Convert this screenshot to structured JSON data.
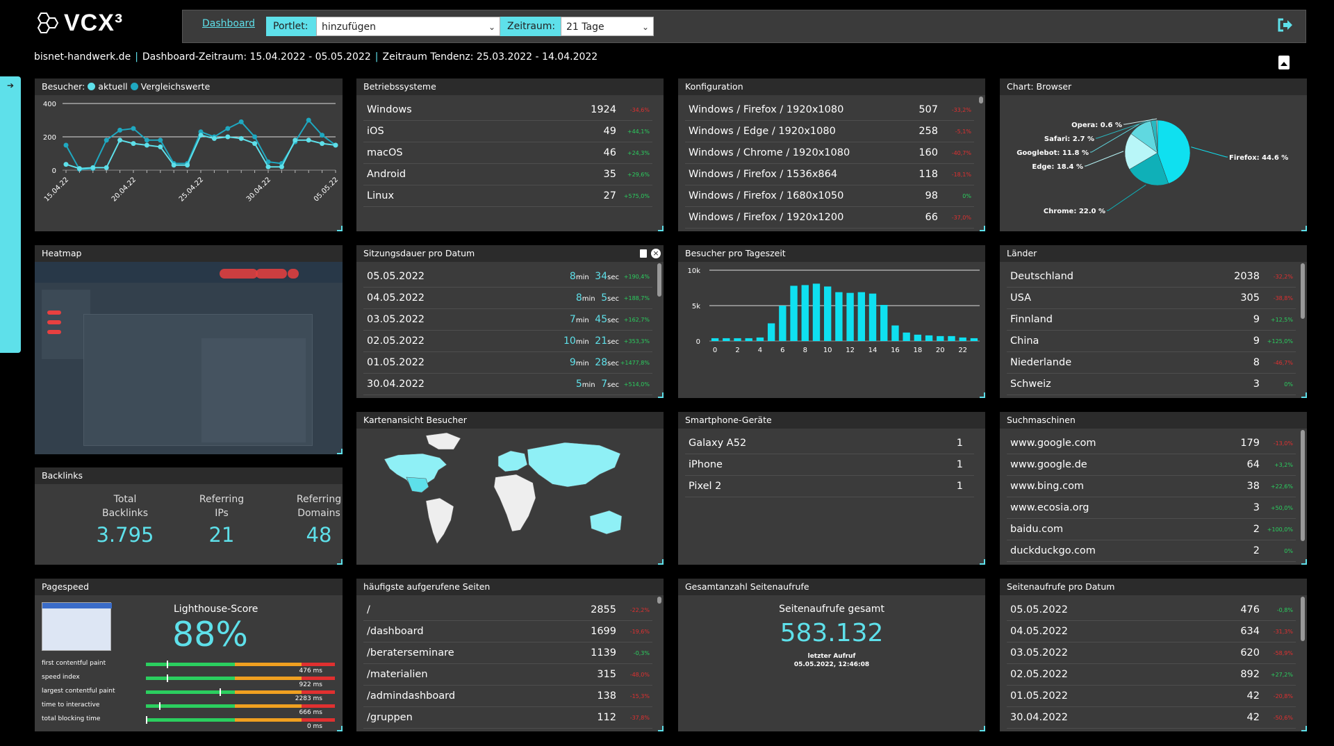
{
  "app": {
    "logo": "VCX³",
    "dashboard_link": "Dashboard",
    "portlet_label": "Portlet:",
    "portlet_value": "hinzufügen",
    "zeitraum_label": "Zeitraum:",
    "zeitraum_value": "21 Tage"
  },
  "subline": {
    "site": "bisnet-handwerk.de",
    "range": "Dashboard-Zeitraum: 15.04.2022 - 05.05.2022",
    "trend": "Zeitraum Tendenz: 25.03.2022 - 14.04.2022",
    "sep": "|"
  },
  "visitors": {
    "title": "Besucher:",
    "aktuell": "aktuell",
    "vergleich": "Vergleichswerte"
  },
  "os": {
    "title": "Betriebssysteme",
    "rows": [
      {
        "name": "Windows",
        "value": "1924",
        "trend": "-34,6%",
        "dir": "dn"
      },
      {
        "name": "iOS",
        "value": "49",
        "trend": "+44,1%",
        "dir": "up"
      },
      {
        "name": "macOS",
        "value": "46",
        "trend": "+24,3%",
        "dir": "up"
      },
      {
        "name": "Android",
        "value": "35",
        "trend": "+29,6%",
        "dir": "up"
      },
      {
        "name": "Linux",
        "value": "27",
        "trend": "+575,0%",
        "dir": "up"
      }
    ]
  },
  "konfig": {
    "title": "Konfiguration",
    "rows": [
      {
        "name": "Windows / Firefox / 1920x1080",
        "value": "507",
        "trend": "-33,2%",
        "dir": "dn"
      },
      {
        "name": "Windows / Edge / 1920x1080",
        "value": "258",
        "trend": "-5,1%",
        "dir": "dn"
      },
      {
        "name": "Windows / Chrome / 1920x1080",
        "value": "160",
        "trend": "-40,7%",
        "dir": "dn"
      },
      {
        "name": "Windows / Firefox / 1536x864",
        "value": "118",
        "trend": "-18,1%",
        "dir": "dn"
      },
      {
        "name": "Windows / Firefox / 1680x1050",
        "value": "98",
        "trend": "0%",
        "dir": "up"
      },
      {
        "name": "Windows / Firefox / 1920x1200",
        "value": "66",
        "trend": "-37,0%",
        "dir": "dn"
      }
    ]
  },
  "browser": {
    "title": "Chart: Browser"
  },
  "heatmap": {
    "title": "Heatmap"
  },
  "duration": {
    "title": "Sitzungsdauer pro Datum",
    "min": "min",
    "sec": "sec",
    "rows": [
      {
        "date": "05.05.2022",
        "m": "8",
        "s": "34",
        "trend": "+190,4%"
      },
      {
        "date": "04.05.2022",
        "m": "8",
        "s": "5",
        "trend": "+188,7%"
      },
      {
        "date": "03.05.2022",
        "m": "7",
        "s": "45",
        "trend": "+162,7%"
      },
      {
        "date": "02.05.2022",
        "m": "10",
        "s": "21",
        "trend": "+353,3%"
      },
      {
        "date": "01.05.2022",
        "m": "9",
        "s": "28",
        "trend": "+1477,8%"
      },
      {
        "date": "30.04.2022",
        "m": "5",
        "s": "7",
        "trend": "+514,0%"
      }
    ]
  },
  "tageszeit": {
    "title": "Besucher pro Tageszeit"
  },
  "laender": {
    "title": "Länder",
    "rows": [
      {
        "name": "Deutschland",
        "value": "2038",
        "trend": "-32,2%",
        "dir": "dn"
      },
      {
        "name": "USA",
        "value": "305",
        "trend": "-38,8%",
        "dir": "dn"
      },
      {
        "name": "Finnland",
        "value": "9",
        "trend": "+12,5%",
        "dir": "up"
      },
      {
        "name": "China",
        "value": "9",
        "trend": "+125,0%",
        "dir": "up"
      },
      {
        "name": "Niederlande",
        "value": "8",
        "trend": "-46,7%",
        "dir": "dn"
      },
      {
        "name": "Schweiz",
        "value": "3",
        "trend": "0%",
        "dir": "up"
      }
    ]
  },
  "backlinks": {
    "title": "Backlinks",
    "items": [
      {
        "label1": "Total",
        "label2": "Backlinks",
        "value": "3.795"
      },
      {
        "label1": "Referring",
        "label2": "IPs",
        "value": "21"
      },
      {
        "label1": "Referring",
        "label2": "Domains",
        "value": "48"
      }
    ]
  },
  "karte": {
    "title": "Kartenansicht Besucher"
  },
  "smartphones": {
    "title": "Smartphone-Geräte",
    "rows": [
      {
        "name": "Galaxy A52",
        "value": "1"
      },
      {
        "name": "iPhone",
        "value": "1"
      },
      {
        "name": "Pixel 2",
        "value": "1"
      }
    ]
  },
  "suchmaschinen": {
    "title": "Suchmaschinen",
    "rows": [
      {
        "name": "www.google.com",
        "value": "179",
        "trend": "-13,0%",
        "dir": "dn"
      },
      {
        "name": "www.google.de",
        "value": "64",
        "trend": "+3,2%",
        "dir": "up"
      },
      {
        "name": "www.bing.com",
        "value": "38",
        "trend": "+22,6%",
        "dir": "up"
      },
      {
        "name": "www.ecosia.org",
        "value": "3",
        "trend": "+50,0%",
        "dir": "up"
      },
      {
        "name": "baidu.com",
        "value": "2",
        "trend": "+100,0%",
        "dir": "up"
      },
      {
        "name": "duckduckgo.com",
        "value": "2",
        "trend": "0%",
        "dir": "up"
      }
    ]
  },
  "pagespeed": {
    "title": "Pagespeed",
    "score_label": "Lighthouse-Score",
    "score": "88%",
    "metrics": [
      {
        "label": "first contentful paint",
        "value": "476 ms",
        "marker": 0.11
      },
      {
        "label": "speed index",
        "value": "922 ms",
        "marker": 0.11
      },
      {
        "label": "largest contentful paint",
        "value": "2283 ms",
        "marker": 0.39
      },
      {
        "label": "time to interactive",
        "value": "666 ms",
        "marker": 0.07
      },
      {
        "label": "total blocking time",
        "value": "0 ms",
        "marker": 0.0
      }
    ]
  },
  "pages": {
    "title": "häufigste aufgerufene Seiten",
    "rows": [
      {
        "name": "/",
        "value": "2855",
        "trend": "-22,2%",
        "dir": "dn"
      },
      {
        "name": "/dashboard",
        "value": "1699",
        "trend": "-19,6%",
        "dir": "dn"
      },
      {
        "name": "/beraterseminare",
        "value": "1139",
        "trend": "-0,3%",
        "dir": "up"
      },
      {
        "name": "/materialien",
        "value": "315",
        "trend": "-48,0%",
        "dir": "dn"
      },
      {
        "name": "/admindashboard",
        "value": "138",
        "trend": "-15,3%",
        "dir": "dn"
      },
      {
        "name": "/gruppen",
        "value": "112",
        "trend": "-37,8%",
        "dir": "dn"
      }
    ]
  },
  "gesamt": {
    "title": "Gesamtanzahl Seitenaufrufe",
    "label": "Seitenaufrufe gesamt",
    "value": "583.132",
    "last_label": "letzter Aufruf",
    "last_value": "05.05.2022, 12:46:08"
  },
  "aufrufe": {
    "title": "Seitenaufrufe pro Datum",
    "rows": [
      {
        "name": "05.05.2022",
        "value": "476",
        "trend": "-0,8%",
        "dir": "up"
      },
      {
        "name": "04.05.2022",
        "value": "634",
        "trend": "-31,3%",
        "dir": "dn"
      },
      {
        "name": "03.05.2022",
        "value": "620",
        "trend": "-58,9%",
        "dir": "dn"
      },
      {
        "name": "02.05.2022",
        "value": "892",
        "trend": "+27,2%",
        "dir": "up"
      },
      {
        "name": "01.05.2022",
        "value": "42",
        "trend": "-20,8%",
        "dir": "dn"
      },
      {
        "name": "30.04.2022",
        "value": "42",
        "trend": "-50,6%",
        "dir": "dn"
      }
    ]
  },
  "colors": {
    "accent": "#5ee0ea",
    "up": "#2bcf5f",
    "down": "#e03030",
    "bar_green": "#2bcf5f",
    "bar_orange": "#f0a020",
    "bar_red": "#e03030"
  },
  "chart_data": [
    {
      "type": "line",
      "title": "Besucher",
      "ylim": [
        0,
        400
      ],
      "yticks": [
        0,
        200,
        400
      ],
      "x": [
        "15.04.22",
        "16.04.22",
        "17.04.22",
        "18.04.22",
        "19.04.22",
        "20.04.22",
        "21.04.22",
        "22.04.22",
        "23.04.22",
        "24.04.22",
        "25.04.22",
        "26.04.22",
        "27.04.22",
        "28.04.22",
        "29.04.22",
        "30.04.22",
        "01.05.22",
        "02.05.22",
        "03.05.22",
        "04.05.22",
        "05.05.22"
      ],
      "xtick_labels": [
        "15.04.22",
        "20.04.22",
        "25.04.22",
        "30.04.22",
        "05.05.22"
      ],
      "series": [
        {
          "name": "aktuell",
          "color": "#5ee0ea",
          "values": [
            35,
            10,
            15,
            15,
            180,
            160,
            150,
            140,
            30,
            30,
            210,
            190,
            200,
            190,
            160,
            20,
            20,
            180,
            180,
            160,
            150
          ]
        },
        {
          "name": "Vergleichswerte",
          "color": "#1fa8c0",
          "values": [
            150,
            5,
            10,
            180,
            240,
            250,
            180,
            180,
            40,
            40,
            230,
            200,
            250,
            290,
            200,
            50,
            40,
            170,
            300,
            210,
            150
          ]
        }
      ]
    },
    {
      "type": "pie",
      "title": "Chart: Browser",
      "labels": [
        "Firefox",
        "Chrome",
        "Edge",
        "Googlebot",
        "Safari",
        "Opera"
      ],
      "values": [
        44.6,
        22.0,
        18.4,
        11.8,
        2.7,
        0.6
      ],
      "display": [
        "Firefox: 44.6 %",
        "Chrome: 22.0 %",
        "Edge: 18.4 %",
        "Googlebot: 11.8 %",
        "Safari: 2.7 %",
        "Opera: 0.6 %"
      ],
      "colors": [
        "#0fe0f0",
        "#0fb0b8",
        "#b8f6f8",
        "#60d8e0",
        "#2ab8c0",
        "#d0f0f0"
      ]
    },
    {
      "type": "bar",
      "title": "Besucher pro Tageszeit",
      "ylim": [
        0,
        10000
      ],
      "yticks": [
        "0",
        "5k",
        "10k"
      ],
      "categories": [
        "0",
        "1",
        "2",
        "3",
        "4",
        "5",
        "6",
        "7",
        "8",
        "9",
        "10",
        "11",
        "12",
        "13",
        "14",
        "15",
        "16",
        "17",
        "18",
        "19",
        "20",
        "21",
        "22",
        "23"
      ],
      "xtick_labels": [
        "0",
        "2",
        "4",
        "6",
        "8",
        "10",
        "12",
        "14",
        "16",
        "18",
        "20",
        "22"
      ],
      "values": [
        400,
        400,
        400,
        400,
        500,
        2500,
        5000,
        7800,
        7900,
        8100,
        7700,
        6900,
        6800,
        6900,
        6700,
        5100,
        2200,
        1200,
        900,
        800,
        700,
        700,
        500,
        400
      ]
    }
  ]
}
